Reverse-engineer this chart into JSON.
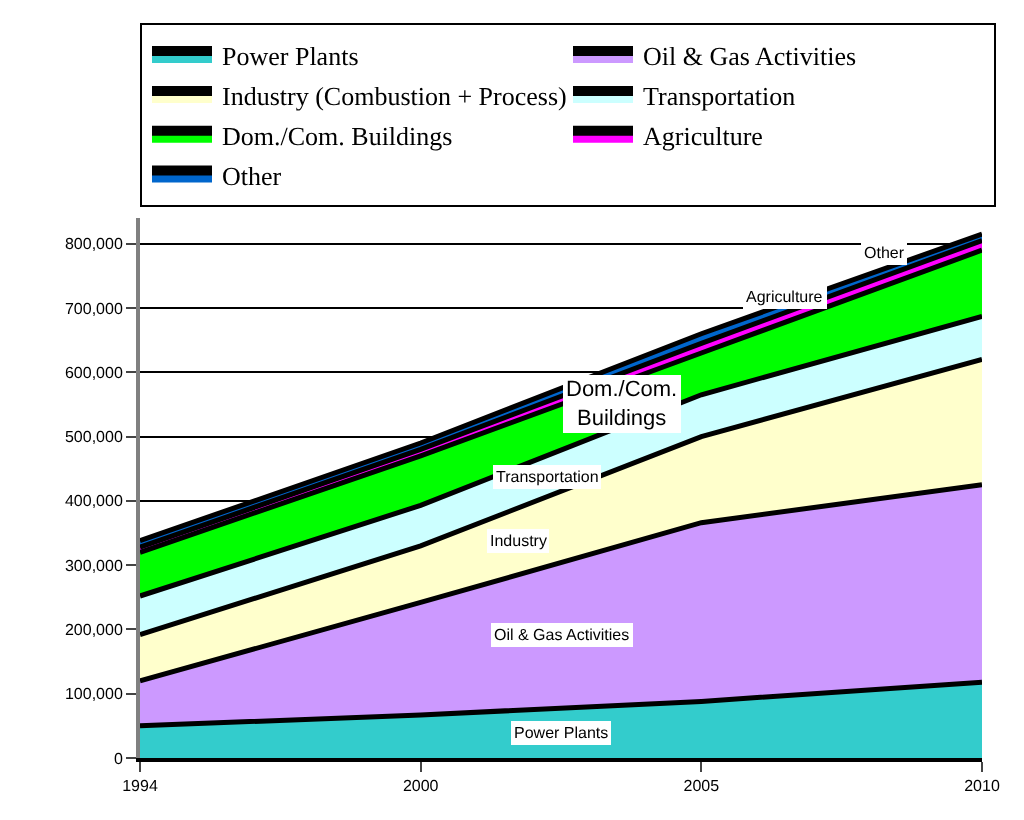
{
  "chart_data": {
    "type": "area",
    "stacked": true,
    "categories": [
      "1994",
      "2000",
      "2005",
      "2010"
    ],
    "series": [
      {
        "name": "Power Plants",
        "color": "#33cccc",
        "values": [
          50000,
          67000,
          88000,
          118000
        ]
      },
      {
        "name": "Oil & Gas Activities",
        "color": "#cc99ff",
        "values": [
          70000,
          175000,
          278000,
          307000
        ]
      },
      {
        "name": "Industry (Combustion + Process)",
        "color": "#ffffcc",
        "values": [
          72000,
          88000,
          134000,
          195000
        ]
      },
      {
        "name": "Transportation",
        "color": "#ccffff",
        "values": [
          60000,
          63000,
          65000,
          67000
        ]
      },
      {
        "name": "Dom./Com. Buildings",
        "color": "#00ff00",
        "values": [
          68000,
          77000,
          65000,
          103000
        ]
      },
      {
        "name": "Agriculture",
        "color": "#ff00ff",
        "values": [
          8000,
          10000,
          15000,
          15000
        ]
      },
      {
        "name": "Other",
        "color": "#0066cc",
        "values": [
          10000,
          10000,
          15000,
          10000
        ]
      }
    ],
    "ylim": [
      0,
      840000
    ],
    "yticks": [
      {
        "value": 0,
        "label": "0"
      },
      {
        "value": 100000,
        "label": "100,000"
      },
      {
        "value": 200000,
        "label": "200,000"
      },
      {
        "value": 300000,
        "label": "300,000"
      },
      {
        "value": 400000,
        "label": "400,000"
      },
      {
        "value": 500000,
        "label": "500,000"
      },
      {
        "value": 600000,
        "label": "600,000"
      },
      {
        "value": 700000,
        "label": "700,000"
      },
      {
        "value": 800000,
        "label": "800,000"
      }
    ],
    "grid": "y",
    "legend": "top",
    "marker": "none",
    "line_style": "solid",
    "annotations": [
      "Power Plants",
      "Oil & Gas Activities",
      "Industry",
      "Transportation",
      "Dom./Com.\nBuildings",
      "Agriculture",
      "Other"
    ]
  }
}
